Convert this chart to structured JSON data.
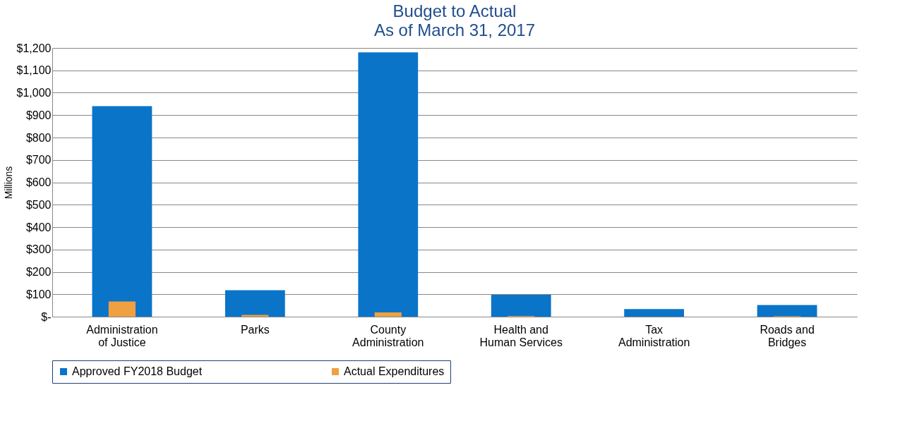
{
  "chart_data": {
    "type": "bar",
    "title": "Budget to Actual",
    "subtitle": "As of  March 31, 2017",
    "ylabel": "Millions",
    "categories": [
      "Administration of Justice",
      "Parks",
      "County Administration",
      "Health and Human Services",
      "Tax Administration",
      "Roads and Bridges"
    ],
    "series": [
      {
        "name": "Approved FY2018 Budget",
        "color": "#0a74c9",
        "values": [
          940,
          118,
          1180,
          98,
          34,
          52
        ]
      },
      {
        "name": "Actual Expenditures",
        "color": "#f0a040",
        "values": [
          68,
          8,
          19,
          3,
          null,
          2
        ]
      }
    ],
    "ylim": [
      0,
      1200
    ],
    "yticks": [
      {
        "value": 0,
        "label": "$-"
      },
      {
        "value": 100,
        "label": "$100"
      },
      {
        "value": 200,
        "label": "$200"
      },
      {
        "value": 300,
        "label": "$300"
      },
      {
        "value": 400,
        "label": "$400"
      },
      {
        "value": 500,
        "label": "$500"
      },
      {
        "value": 600,
        "label": "$600"
      },
      {
        "value": 700,
        "label": "$700"
      },
      {
        "value": 800,
        "label": "$800"
      },
      {
        "value": 900,
        "label": "$900"
      },
      {
        "value": 1000,
        "label": "$1,000"
      },
      {
        "value": 1100,
        "label": "$1,100"
      },
      {
        "value": 1200,
        "label": "$1,200"
      }
    ],
    "grid": "y",
    "legend": "bottom"
  }
}
